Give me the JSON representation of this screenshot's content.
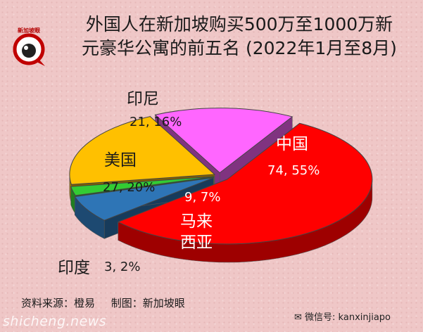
{
  "header": {
    "title_line1": "外国人在新加坡购买500万至1000万新",
    "title_line2": "元豪华公寓的前五名 (2022年1月至8月)",
    "logo_text": "新加坡眼"
  },
  "chart_data": {
    "type": "pie",
    "style": "3d-exploded",
    "slices": [
      {
        "name": "中国",
        "name_display": "中国",
        "count": 74,
        "percent": 55,
        "value_label": "74, 55%",
        "color": "#ff0000"
      },
      {
        "name": "马来西亚",
        "name_display": "马来\n西亚",
        "count": 9,
        "percent": 7,
        "value_label": "9, 7%",
        "color": "#2e75b6"
      },
      {
        "name": "印度",
        "name_display": "印度",
        "count": 3,
        "percent": 2,
        "value_label": "3, 2%",
        "color": "#33cc33"
      },
      {
        "name": "美国",
        "name_display": "美国",
        "count": 27,
        "percent": 20,
        "value_label": "27, 20%",
        "color": "#ffc000"
      },
      {
        "name": "印尼",
        "name_display": "印尼",
        "count": 21,
        "percent": 16,
        "value_label": "21, 16%",
        "color": "#ff66ff"
      }
    ]
  },
  "footer": {
    "source": "资料来源：橙易",
    "made_by": "制图：新加坡眼",
    "wechat": "微信号: kanxinjiapo",
    "watermark": "shicheng.news"
  }
}
